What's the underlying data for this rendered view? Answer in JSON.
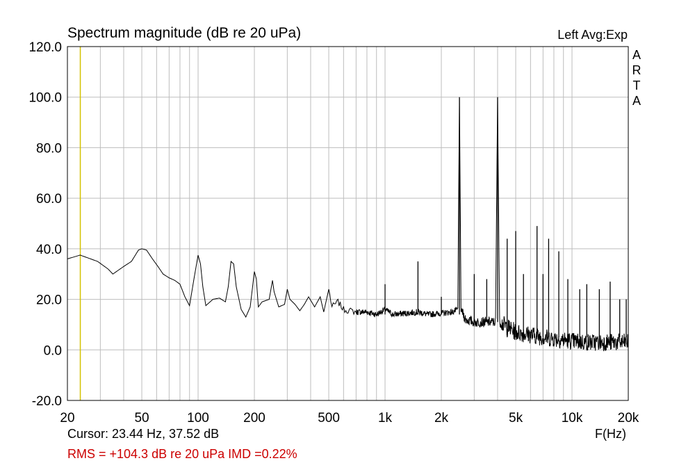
{
  "title": "Spectrum magnitude (dB re 20 uPa)",
  "header_right": "Left  Avg:Exp",
  "brand": [
    "A",
    "R",
    "T",
    "A"
  ],
  "cursor_readout": "Cursor: 23.44 Hz, 37.52 dB",
  "stats_readout": "RMS = +104.3 dB re 20 uPa  IMD =0.22%",
  "colors": {
    "trace": "#000000",
    "grid": "#bdbdbd",
    "cursor": "#d4c200",
    "stats_text": "#cc0000"
  },
  "chart_data": {
    "type": "line",
    "title": "Spectrum magnitude (dB re 20 uPa)",
    "xlabel": "F(Hz)",
    "ylabel": "",
    "x_scale": "log",
    "xlim": [
      20,
      20000
    ],
    "ylim": [
      -20,
      120
    ],
    "grid": true,
    "x_ticks": [
      {
        "value": 20,
        "label": "20"
      },
      {
        "value": 50,
        "label": "50"
      },
      {
        "value": 100,
        "label": "100"
      },
      {
        "value": 200,
        "label": "200"
      },
      {
        "value": 500,
        "label": "500"
      },
      {
        "value": 1000,
        "label": "1k"
      },
      {
        "value": 2000,
        "label": "2k"
      },
      {
        "value": 5000,
        "label": "5k"
      },
      {
        "value": 10000,
        "label": "10k"
      },
      {
        "value": 20000,
        "label": "20k"
      }
    ],
    "y_ticks": [
      {
        "value": 120,
        "label": "120.0"
      },
      {
        "value": 100,
        "label": "100.0"
      },
      {
        "value": 80,
        "label": "80.0"
      },
      {
        "value": 60,
        "label": "60.0"
      },
      {
        "value": 40,
        "label": "40.0"
      },
      {
        "value": 20,
        "label": "20.0"
      },
      {
        "value": 0,
        "label": "0.0"
      },
      {
        "value": -20,
        "label": "-20.0"
      }
    ],
    "cursor": {
      "x": 23.44,
      "y": 37.52
    },
    "series": [
      {
        "points": [
          [
            20,
            36
          ],
          [
            23.4,
            37.5
          ],
          [
            29,
            35
          ],
          [
            33,
            32
          ],
          [
            35,
            30
          ],
          [
            40,
            33
          ],
          [
            44,
            35
          ],
          [
            48,
            39.5
          ],
          [
            50,
            40
          ],
          [
            53,
            39.5
          ],
          [
            57,
            36
          ],
          [
            61,
            33
          ],
          [
            65,
            30
          ],
          [
            70,
            28.5
          ],
          [
            75,
            27.5
          ],
          [
            80,
            26
          ],
          [
            85,
            21
          ],
          [
            90,
            17.5
          ],
          [
            95,
            28
          ],
          [
            100,
            37.5
          ],
          [
            103,
            34
          ],
          [
            106,
            25
          ],
          [
            110,
            17.5
          ],
          [
            120,
            20
          ],
          [
            130,
            20.5
          ],
          [
            140,
            19
          ],
          [
            145,
            25
          ],
          [
            150,
            35
          ],
          [
            155,
            34
          ],
          [
            160,
            25
          ],
          [
            170,
            16
          ],
          [
            180,
            13
          ],
          [
            190,
            17
          ],
          [
            200,
            31
          ],
          [
            205,
            28
          ],
          [
            210,
            17
          ],
          [
            220,
            19
          ],
          [
            240,
            20
          ],
          [
            250,
            27.5
          ],
          [
            255,
            23
          ],
          [
            270,
            17
          ],
          [
            290,
            18
          ],
          [
            300,
            24
          ],
          [
            310,
            20
          ],
          [
            330,
            18
          ],
          [
            350,
            15.5
          ],
          [
            370,
            18
          ],
          [
            390,
            21
          ],
          [
            420,
            17
          ],
          [
            450,
            21
          ],
          [
            470,
            15
          ],
          [
            500,
            24
          ],
          [
            520,
            17
          ],
          [
            560,
            19
          ],
          [
            600,
            16
          ],
          [
            700,
            15
          ],
          [
            800,
            15
          ],
          [
            900,
            14
          ],
          [
            1000,
            16
          ],
          [
            1100,
            14
          ],
          [
            1300,
            14.5
          ],
          [
            1500,
            15
          ],
          [
            1700,
            14
          ],
          [
            2000,
            14.5
          ],
          [
            2300,
            15
          ],
          [
            2450,
            16
          ],
          [
            2500,
            100
          ],
          [
            2550,
            16
          ],
          [
            2700,
            12
          ],
          [
            3000,
            11
          ],
          [
            3500,
            11
          ],
          [
            3900,
            11
          ],
          [
            4000,
            100
          ],
          [
            4100,
            11
          ],
          [
            5000,
            7
          ],
          [
            6000,
            6
          ],
          [
            7000,
            5
          ],
          [
            8000,
            4.5
          ],
          [
            10000,
            3.5
          ],
          [
            12000,
            3
          ],
          [
            15000,
            3
          ],
          [
            20000,
            3
          ]
        ],
        "spikes": [
          [
            1000,
            26
          ],
          [
            1500,
            35
          ],
          [
            2000,
            21
          ],
          [
            2500,
            100
          ],
          [
            3000,
            30
          ],
          [
            3500,
            28
          ],
          [
            4000,
            100
          ],
          [
            4500,
            44
          ],
          [
            5000,
            47
          ],
          [
            5500,
            30
          ],
          [
            6500,
            49
          ],
          [
            7000,
            30
          ],
          [
            7500,
            44
          ],
          [
            8500,
            39
          ],
          [
            9500,
            28
          ],
          [
            11000,
            24
          ],
          [
            12000,
            26
          ],
          [
            14000,
            24
          ],
          [
            16000,
            27
          ],
          [
            18000,
            20
          ],
          [
            19500,
            20
          ]
        ]
      }
    ]
  }
}
